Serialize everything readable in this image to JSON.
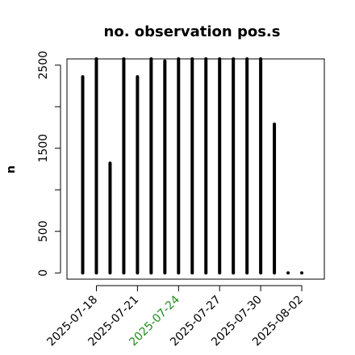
{
  "chart_data": {
    "type": "bar",
    "title": "no. observation pos.s",
    "xlabel": "",
    "ylabel": "n",
    "ylim": [
      -75,
      2575
    ],
    "yticks": [
      0,
      500,
      1500,
      2500
    ],
    "x": [
      "2025-07-17",
      "2025-07-18",
      "2025-07-19",
      "2025-07-20",
      "2025-07-21",
      "2025-07-22",
      "2025-07-23",
      "2025-07-24",
      "2025-07-25",
      "2025-07-26",
      "2025-07-27",
      "2025-07-28",
      "2025-07-29",
      "2025-07-30",
      "2025-07-31",
      "2025-08-01",
      "2025-08-02"
    ],
    "values": [
      2360,
      2575,
      1320,
      2575,
      2360,
      2575,
      2550,
      2575,
      2575,
      2575,
      2575,
      2575,
      2575,
      2575,
      1790,
      0,
      0
    ],
    "xtick_labels": [
      {
        "date": "2025-07-18",
        "label": "2025-07-18",
        "color": "#000000"
      },
      {
        "date": "2025-07-21",
        "label": "2025-07-21",
        "color": "#000000"
      },
      {
        "date": "2025-07-24",
        "label": "2025-07-24",
        "color": "#228b22"
      },
      {
        "date": "2025-07-27",
        "label": "2025-07-27",
        "color": "#000000"
      },
      {
        "date": "2025-07-30",
        "label": "2025-07-30",
        "color": "#000000"
      },
      {
        "date": "2025-08-02",
        "label": "2025-08-02",
        "color": "#000000"
      }
    ],
    "grid": false,
    "bar_color": "#000000"
  }
}
